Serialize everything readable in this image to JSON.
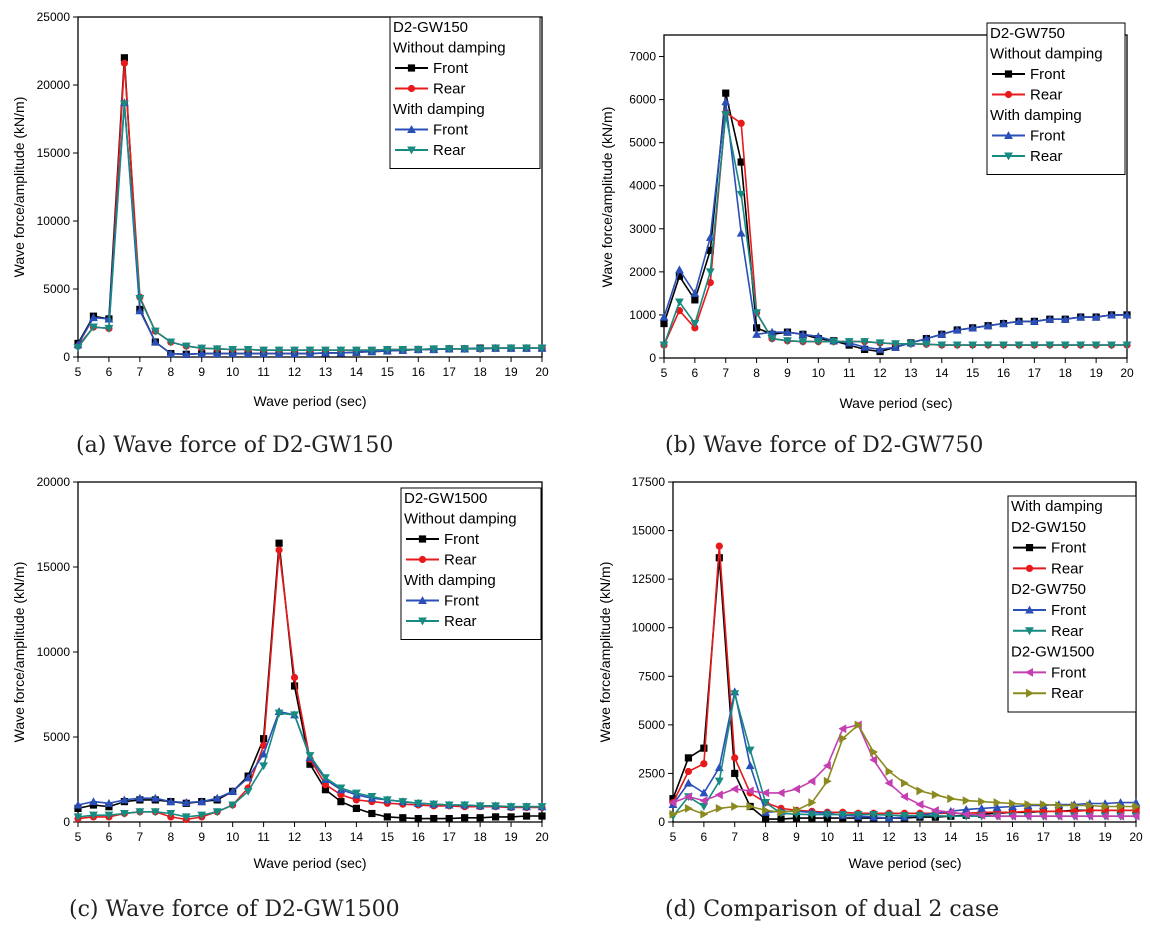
{
  "chart_data": [
    {
      "type": "line",
      "caption": "(a) Wave force of D2-GW150",
      "xlabel": "Wave period (sec)",
      "ylabel": "Wave force/amplitude (kN/m)",
      "xlim": [
        5,
        20
      ],
      "ylim": [
        0,
        25000
      ],
      "xticks": [
        5,
        6,
        7,
        8,
        9,
        10,
        11,
        12,
        13,
        14,
        15,
        16,
        17,
        18,
        19,
        20
      ],
      "yticks": [
        0,
        5000,
        10000,
        15000,
        20000,
        25000
      ],
      "legend_lines": [
        {
          "text": "D2-GW150"
        },
        {
          "text": "Without damping"
        },
        {
          "series": 0,
          "text": "Front"
        },
        {
          "series": 1,
          "text": "Rear"
        },
        {
          "text": "With damping"
        },
        {
          "series": 2,
          "text": "Front"
        },
        {
          "series": 3,
          "text": "Rear"
        }
      ],
      "x": [
        5,
        5.5,
        6,
        6.5,
        7,
        7.5,
        8,
        8.5,
        9,
        9.5,
        10,
        10.5,
        11,
        11.5,
        12,
        12.5,
        13,
        13.5,
        14,
        14.5,
        15,
        15.5,
        16,
        16.5,
        17,
        17.5,
        18,
        18.5,
        19,
        19.5,
        20
      ],
      "series": [
        {
          "name": "Front",
          "color": "#000000",
          "marker": "square",
          "values": [
            1000,
            3000,
            2800,
            22000,
            3500,
            1100,
            250,
            200,
            250,
            250,
            250,
            250,
            250,
            250,
            250,
            250,
            300,
            300,
            350,
            400,
            450,
            500,
            550,
            550,
            600,
            600,
            650,
            650,
            650,
            650,
            650
          ]
        },
        {
          "name": "Rear",
          "color": "#e8191b",
          "marker": "circle",
          "values": [
            800,
            2200,
            2100,
            21600,
            4400,
            1900,
            1100,
            800,
            650,
            600,
            550,
            550,
            500,
            500,
            500,
            500,
            500,
            500,
            500,
            500,
            550,
            550,
            550,
            600,
            600,
            600,
            600,
            650,
            650,
            650,
            650
          ]
        },
        {
          "name": "Front",
          "color": "#2b4fb8",
          "marker": "triangle-up",
          "values": [
            900,
            2900,
            2800,
            18700,
            3400,
            1100,
            250,
            200,
            250,
            250,
            250,
            250,
            250,
            250,
            250,
            250,
            300,
            300,
            350,
            400,
            450,
            500,
            550,
            550,
            600,
            600,
            650,
            650,
            650,
            650,
            650
          ]
        },
        {
          "name": "Rear",
          "color": "#178a82",
          "marker": "triangle-down",
          "values": [
            700,
            2200,
            2100,
            18600,
            4300,
            1900,
            1100,
            800,
            650,
            600,
            550,
            550,
            500,
            500,
            500,
            500,
            500,
            500,
            500,
            500,
            550,
            550,
            550,
            600,
            600,
            600,
            600,
            650,
            650,
            650,
            650
          ]
        }
      ]
    },
    {
      "type": "line",
      "caption": "(b) Wave force of D2-GW750",
      "xlabel": "Wave period (sec)",
      "ylabel": "Wave force/amplitude (kN/m)",
      "xlim": [
        5,
        20
      ],
      "ylim": [
        0,
        7500
      ],
      "xticks": [
        5,
        6,
        7,
        8,
        9,
        10,
        11,
        12,
        13,
        14,
        15,
        16,
        17,
        18,
        19,
        20
      ],
      "yticks": [
        0,
        1000,
        2000,
        3000,
        4000,
        5000,
        6000,
        7000
      ],
      "legend_lines": [
        {
          "text": "D2-GW750"
        },
        {
          "text": "Without damping"
        },
        {
          "series": 0,
          "text": "Front"
        },
        {
          "series": 1,
          "text": "Rear"
        },
        {
          "text": "With damping"
        },
        {
          "series": 2,
          "text": "Front"
        },
        {
          "series": 3,
          "text": "Rear"
        }
      ],
      "x": [
        5,
        5.5,
        6,
        6.5,
        7,
        7.5,
        8,
        8.5,
        9,
        9.5,
        10,
        10.5,
        11,
        11.5,
        12,
        12.5,
        13,
        13.5,
        14,
        14.5,
        15,
        15.5,
        16,
        16.5,
        17,
        17.5,
        18,
        18.5,
        19,
        19.5,
        20
      ],
      "series": [
        {
          "name": "Front",
          "color": "#000000",
          "marker": "square",
          "values": [
            800,
            1900,
            1350,
            2500,
            6150,
            4550,
            700,
            550,
            600,
            550,
            450,
            400,
            300,
            200,
            150,
            250,
            350,
            450,
            550,
            650,
            700,
            750,
            800,
            850,
            850,
            900,
            900,
            950,
            950,
            1000,
            1000
          ]
        },
        {
          "name": "Rear",
          "color": "#e8191b",
          "marker": "circle",
          "values": [
            300,
            1100,
            700,
            1750,
            5700,
            5450,
            1050,
            450,
            400,
            380,
            380,
            380,
            380,
            380,
            350,
            330,
            330,
            320,
            300,
            300,
            300,
            300,
            300,
            300,
            300,
            300,
            300,
            300,
            300,
            300,
            300
          ]
        },
        {
          "name": "Front",
          "color": "#2b4fb8",
          "marker": "triangle-up",
          "values": [
            950,
            2050,
            1500,
            2800,
            5950,
            2900,
            550,
            600,
            600,
            550,
            500,
            400,
            350,
            250,
            200,
            250,
            350,
            450,
            550,
            650,
            700,
            750,
            800,
            850,
            850,
            900,
            900,
            950,
            950,
            1000,
            1000
          ]
        },
        {
          "name": "Rear",
          "color": "#178a82",
          "marker": "triangle-down",
          "values": [
            300,
            1300,
            800,
            2000,
            5650,
            3800,
            1050,
            450,
            400,
            380,
            380,
            380,
            380,
            380,
            350,
            330,
            330,
            320,
            300,
            300,
            300,
            300,
            300,
            300,
            300,
            300,
            300,
            300,
            300,
            300,
            300
          ]
        }
      ]
    },
    {
      "type": "line",
      "caption": "(c) Wave force of D2-GW1500",
      "xlabel": "Wave period (sec)",
      "ylabel": "Wave force/amplitude (kN/m)",
      "xlim": [
        5,
        20
      ],
      "ylim": [
        0,
        20000
      ],
      "xticks": [
        5,
        6,
        7,
        8,
        9,
        10,
        11,
        12,
        13,
        14,
        15,
        16,
        17,
        18,
        19,
        20
      ],
      "yticks": [
        0,
        5000,
        10000,
        15000,
        20000
      ],
      "legend_lines": [
        {
          "text": "D2-GW1500"
        },
        {
          "text": "Without damping"
        },
        {
          "series": 0,
          "text": "Front"
        },
        {
          "series": 1,
          "text": "Rear"
        },
        {
          "text": "With damping"
        },
        {
          "series": 2,
          "text": "Front"
        },
        {
          "series": 3,
          "text": "Rear"
        }
      ],
      "x": [
        5,
        5.5,
        6,
        6.5,
        7,
        7.5,
        8,
        8.5,
        9,
        9.5,
        10,
        10.5,
        11,
        11.5,
        12,
        12.5,
        13,
        13.5,
        14,
        14.5,
        15,
        15.5,
        16,
        16.5,
        17,
        17.5,
        18,
        18.5,
        19,
        19.5,
        20
      ],
      "series": [
        {
          "name": "Front",
          "color": "#000000",
          "marker": "square",
          "values": [
            800,
            1000,
            900,
            1200,
            1300,
            1300,
            1200,
            1100,
            1200,
            1300,
            1800,
            2700,
            4900,
            16400,
            8000,
            3400,
            1900,
            1200,
            800,
            500,
            300,
            250,
            200,
            200,
            200,
            250,
            250,
            300,
            300,
            350,
            350
          ]
        },
        {
          "name": "Rear",
          "color": "#e8191b",
          "marker": "circle",
          "values": [
            200,
            300,
            300,
            500,
            600,
            600,
            300,
            150,
            300,
            600,
            1000,
            2000,
            4500,
            16000,
            8500,
            3700,
            2200,
            1600,
            1300,
            1200,
            1100,
            1050,
            1000,
            950,
            950,
            900,
            900,
            900,
            850,
            850,
            850
          ]
        },
        {
          "name": "Front",
          "color": "#2b4fb8",
          "marker": "triangle-up",
          "values": [
            1000,
            1200,
            1100,
            1300,
            1400,
            1400,
            1200,
            1150,
            1200,
            1400,
            1800,
            2600,
            4000,
            6500,
            6300,
            3800,
            2500,
            1900,
            1600,
            1400,
            1300,
            1200,
            1100,
            1050,
            1000,
            1000,
            950,
            950,
            900,
            900,
            900
          ]
        },
        {
          "name": "Rear",
          "color": "#178a82",
          "marker": "triangle-down",
          "values": [
            300,
            400,
            400,
            500,
            600,
            600,
            500,
            300,
            400,
            600,
            1000,
            1800,
            3300,
            6400,
            6300,
            3900,
            2600,
            2000,
            1700,
            1500,
            1300,
            1200,
            1100,
            1050,
            1000,
            1000,
            950,
            950,
            900,
            900,
            900
          ]
        }
      ]
    },
    {
      "type": "line",
      "caption": "(d) Comparison of dual 2 case",
      "xlabel": "Wave period (sec)",
      "ylabel": "Wave force/amplitude (kN/m)",
      "xlim": [
        5,
        20
      ],
      "ylim": [
        0,
        17500
      ],
      "xticks": [
        5,
        6,
        7,
        8,
        9,
        10,
        11,
        12,
        13,
        14,
        15,
        16,
        17,
        18,
        19,
        20
      ],
      "yticks": [
        0,
        2500,
        5000,
        7500,
        10000,
        12500,
        15000,
        17500
      ],
      "legend_lines": [
        {
          "text": "With damping"
        },
        {
          "text": "D2-GW150"
        },
        {
          "series": 0,
          "text": "Front"
        },
        {
          "series": 1,
          "text": "Rear"
        },
        {
          "text": "D2-GW750"
        },
        {
          "series": 2,
          "text": "Front"
        },
        {
          "series": 3,
          "text": "Rear"
        },
        {
          "text": "D2-GW1500"
        },
        {
          "series": 4,
          "text": "Front"
        },
        {
          "series": 5,
          "text": "Rear"
        }
      ],
      "x": [
        5,
        5.5,
        6,
        6.5,
        7,
        7.5,
        8,
        8.5,
        9,
        9.5,
        10,
        10.5,
        11,
        11.5,
        12,
        12.5,
        13,
        13.5,
        14,
        14.5,
        15,
        15.5,
        16,
        16.5,
        17,
        17.5,
        18,
        18.5,
        19,
        19.5,
        20
      ],
      "series": [
        {
          "name": "Front",
          "color": "#000000",
          "marker": "square",
          "values": [
            1200,
            3300,
            3800,
            13600,
            2500,
            800,
            150,
            150,
            200,
            200,
            200,
            200,
            200,
            200,
            200,
            200,
            250,
            250,
            300,
            350,
            400,
            450,
            500,
            500,
            550,
            550,
            600,
            600,
            600,
            600,
            600
          ]
        },
        {
          "name": "Rear",
          "color": "#e8191b",
          "marker": "circle",
          "values": [
            1000,
            2600,
            3000,
            14200,
            3300,
            1500,
            1000,
            700,
            600,
            550,
            500,
            500,
            450,
            450,
            450,
            450,
            450,
            450,
            450,
            450,
            500,
            500,
            500,
            550,
            550,
            550,
            550,
            600,
            600,
            600,
            600
          ]
        },
        {
          "name": "Front",
          "color": "#2b4fb8",
          "marker": "triangle-up",
          "values": [
            900,
            2000,
            1500,
            2800,
            6700,
            2900,
            500,
            550,
            550,
            500,
            450,
            350,
            300,
            250,
            200,
            250,
            350,
            450,
            550,
            650,
            700,
            750,
            800,
            850,
            850,
            900,
            900,
            950,
            950,
            1000,
            1000
          ]
        },
        {
          "name": "Rear",
          "color": "#178a82",
          "marker": "triangle-down",
          "values": [
            300,
            1300,
            800,
            2100,
            6600,
            3700,
            1000,
            450,
            400,
            380,
            380,
            380,
            380,
            380,
            350,
            330,
            330,
            320,
            300,
            300,
            300,
            300,
            300,
            300,
            300,
            300,
            300,
            300,
            300,
            300,
            300
          ]
        },
        {
          "name": "Front",
          "color": "#c43fb0",
          "marker": "triangle-left",
          "values": [
            1000,
            1300,
            1100,
            1400,
            1700,
            1600,
            1500,
            1500,
            1700,
            2100,
            2900,
            4800,
            5000,
            3200,
            2000,
            1300,
            900,
            600,
            500,
            400,
            350,
            300,
            300,
            300,
            300,
            300,
            300,
            300,
            300,
            300,
            300
          ]
        },
        {
          "name": "Rear",
          "color": "#8a8a1e",
          "marker": "triangle-right",
          "values": [
            400,
            700,
            400,
            700,
            800,
            800,
            600,
            500,
            600,
            1000,
            2100,
            4300,
            5000,
            3600,
            2600,
            2000,
            1600,
            1400,
            1200,
            1100,
            1050,
            1000,
            950,
            900,
            900,
            850,
            850,
            850,
            800,
            800,
            800
          ]
        }
      ]
    }
  ]
}
